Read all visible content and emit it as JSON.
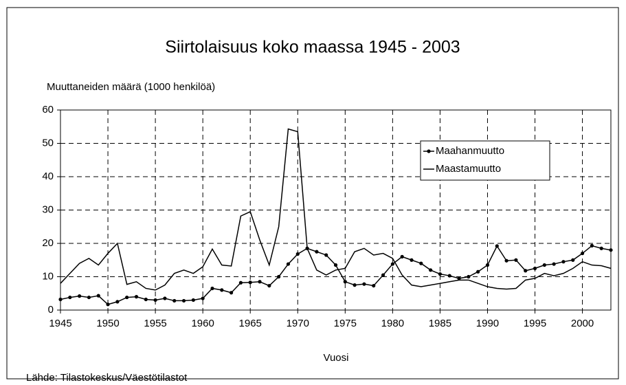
{
  "chart_data": {
    "type": "line",
    "title": "Siirtolaisuus koko maassa 1945 - 2003",
    "y_label": "Muuttaneiden määrä (1000 henkilöä)",
    "x_label": "Vuosi",
    "source": "Lähde: Tilastokeskus/Väestötilastot",
    "x": [
      1945,
      1946,
      1947,
      1948,
      1949,
      1950,
      1951,
      1952,
      1953,
      1954,
      1955,
      1956,
      1957,
      1958,
      1959,
      1960,
      1961,
      1962,
      1963,
      1964,
      1965,
      1966,
      1967,
      1968,
      1969,
      1970,
      1971,
      1972,
      1973,
      1974,
      1975,
      1976,
      1977,
      1978,
      1979,
      1980,
      1981,
      1982,
      1983,
      1984,
      1985,
      1986,
      1987,
      1988,
      1989,
      1990,
      1991,
      1992,
      1993,
      1994,
      1995,
      1996,
      1997,
      1998,
      1999,
      2000,
      2001,
      2002,
      2003
    ],
    "series": [
      {
        "name": "Maahanmuutto",
        "color": "#000000",
        "marker": "circle",
        "values": [
          3.2,
          3.8,
          4.2,
          3.8,
          4.3,
          1.7,
          2.5,
          3.8,
          4.0,
          3.2,
          3.0,
          3.5,
          2.8,
          2.8,
          3.0,
          3.5,
          6.5,
          6.0,
          5.2,
          8.2,
          8.3,
          8.5,
          7.3,
          10.0,
          13.8,
          16.8,
          18.5,
          17.5,
          16.5,
          13.5,
          8.5,
          7.5,
          7.8,
          7.3,
          10.5,
          13.8,
          16.0,
          15.0,
          14.0,
          12.0,
          10.8,
          10.3,
          9.5,
          10.0,
          11.5,
          13.5,
          19.2,
          14.8,
          15.0,
          11.8,
          12.5,
          13.5,
          13.8,
          14.5,
          15.0,
          17.0,
          19.3,
          18.5,
          18.0
        ]
      },
      {
        "name": "Maastamuutto",
        "color": "#000000",
        "marker": "none",
        "values": [
          8,
          11,
          14,
          15.5,
          13.5,
          17,
          20,
          7.7,
          8.5,
          6.5,
          6,
          7.5,
          11,
          12,
          11,
          13,
          18.3,
          13.5,
          13.2,
          28.2,
          29.5,
          21,
          13.5,
          25,
          54.3,
          53.5,
          18.5,
          12,
          10.5,
          12,
          12.5,
          17.5,
          18.5,
          16.5,
          17,
          15.5,
          10.5,
          7.5,
          7,
          7.5,
          8,
          8.5,
          9,
          9,
          8,
          7,
          6.5,
          6.3,
          6.5,
          9,
          9.5,
          11,
          10.3,
          11,
          12.5,
          14.5,
          13.5,
          13.3,
          12.5
        ]
      }
    ],
    "xlim": [
      1945,
      2003
    ],
    "xticks": [
      1945,
      1950,
      1955,
      1960,
      1965,
      1970,
      1975,
      1980,
      1985,
      1990,
      1995,
      2000
    ],
    "ylim": [
      0,
      60
    ],
    "yticks": [
      0,
      10,
      20,
      30,
      40,
      50,
      60
    ],
    "grid": true,
    "legend": "upper right"
  }
}
